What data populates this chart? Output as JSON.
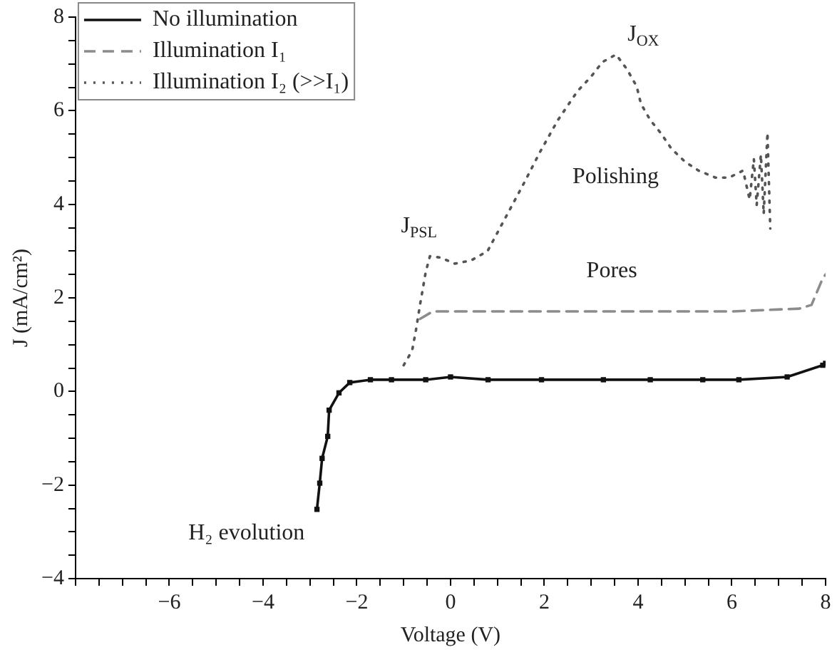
{
  "chart_data": {
    "type": "line",
    "xlabel": "Voltage (V)",
    "ylabel": "J (mA/cm²)",
    "xlim": [
      -8,
      8
    ],
    "ylim": [
      -4,
      8
    ],
    "xticks": [
      {
        "value": -8,
        "label": null
      },
      {
        "value": -7.5,
        "label": null
      },
      {
        "value": -7,
        "label": null
      },
      {
        "value": -6.5,
        "label": null
      },
      -6,
      {
        "value": -5.5,
        "label": null
      },
      {
        "value": -5,
        "label": null
      },
      {
        "value": -4.5,
        "label": null
      },
      -4,
      {
        "value": -3.5,
        "label": null
      },
      {
        "value": -3,
        "label": null
      },
      {
        "value": -2.5,
        "label": null
      },
      -2,
      {
        "value": -1.5,
        "label": null
      },
      {
        "value": -1,
        "label": null
      },
      {
        "value": -0.5,
        "label": null
      },
      0,
      {
        "value": 0.5,
        "label": null
      },
      {
        "value": 1,
        "label": null
      },
      {
        "value": 1.5,
        "label": null
      },
      2,
      {
        "value": 2.5,
        "label": null
      },
      {
        "value": 3,
        "label": null
      },
      {
        "value": 3.5,
        "label": null
      },
      4,
      {
        "value": 4.5,
        "label": null
      },
      {
        "value": 5,
        "label": null
      },
      {
        "value": 5.5,
        "label": null
      },
      6,
      {
        "value": 6.5,
        "label": null
      },
      {
        "value": 7,
        "label": null
      },
      {
        "value": 7.5,
        "label": null
      },
      8
    ],
    "yticks": [
      -4,
      {
        "value": -3.5,
        "label": null
      },
      {
        "value": -3,
        "label": null
      },
      {
        "value": -2.5,
        "label": null
      },
      -2,
      {
        "value": -1.5,
        "label": null
      },
      {
        "value": -1,
        "label": null
      },
      {
        "value": -0.5,
        "label": null
      },
      0,
      {
        "value": 0.5,
        "label": null
      },
      {
        "value": 1,
        "label": null
      },
      {
        "value": 1.5,
        "label": null
      },
      2,
      {
        "value": 2.5,
        "label": null
      },
      {
        "value": 3,
        "label": null
      },
      {
        "value": 3.5,
        "label": null
      },
      4,
      {
        "value": 4.5,
        "label": null
      },
      {
        "value": 5,
        "label": null
      },
      {
        "value": 5.5,
        "label": null
      },
      6,
      {
        "value": 6.5,
        "label": null
      },
      {
        "value": 7,
        "label": null
      },
      {
        "value": 7.5,
        "label": null
      },
      8
    ],
    "grid": false,
    "legend": "top left",
    "series": [
      {
        "name": "No illumination",
        "color": "#111111",
        "marker": "square",
        "line_style": "solid",
        "x": [
          -2.85,
          -2.79,
          -2.74,
          -2.62,
          -2.59,
          -2.38,
          -2.15,
          -1.71,
          -1.26,
          -0.53,
          0,
          0.8,
          1.94,
          3.26,
          4.26,
          5.38,
          6.15,
          7.18,
          7.94,
          8
        ],
        "values": [
          -2.52,
          -1.96,
          -1.43,
          -0.96,
          -0.4,
          -0.03,
          0.19,
          0.25,
          0.25,
          0.25,
          0.31,
          0.25,
          0.25,
          0.25,
          0.25,
          0.25,
          0.25,
          0.31,
          0.56,
          0.6
        ]
      },
      {
        "name": "Illumination I₁",
        "color": "#8c8c8c",
        "marker": "none",
        "line_style": "dashed",
        "x": [
          -0.65,
          -0.38,
          0,
          2,
          4,
          6,
          7.44,
          7.7,
          7.94,
          8
        ],
        "values": [
          1.55,
          1.71,
          1.71,
          1.71,
          1.71,
          1.71,
          1.77,
          1.85,
          2.42,
          2.5
        ]
      },
      {
        "name": "Illumination I₂ (>>I₁)",
        "color": "#555555",
        "marker": "none",
        "line_style": "dotted",
        "x": [
          -1.0,
          -0.82,
          -0.74,
          -0.65,
          -0.53,
          -0.44,
          -0.21,
          0.09,
          0.44,
          0.79,
          1.18,
          1.56,
          1.91,
          2.29,
          2.71,
          3.0,
          3.24,
          3.53,
          3.76,
          3.97,
          4.06,
          4.26,
          4.5,
          4.71,
          5.0,
          5.29,
          5.65,
          5.94,
          6.24,
          6.38,
          6.47,
          6.53,
          6.62,
          6.68,
          6.76,
          6.82
        ],
        "values": [
          0.56,
          0.87,
          1.3,
          1.86,
          2.55,
          2.89,
          2.86,
          2.73,
          2.8,
          3.0,
          3.73,
          4.44,
          5.12,
          5.8,
          6.42,
          6.73,
          7.04,
          7.2,
          6.89,
          6.52,
          6.15,
          5.8,
          5.5,
          5.19,
          4.91,
          4.72,
          4.57,
          4.57,
          4.72,
          4.1,
          4.97,
          3.98,
          5.06,
          3.79,
          5.53,
          3.48
        ]
      }
    ],
    "annotations": [
      "J$_{OX}$",
      "J$_{PSL}$",
      "Polishing",
      "Pores",
      "H₂ evolution"
    ]
  }
}
